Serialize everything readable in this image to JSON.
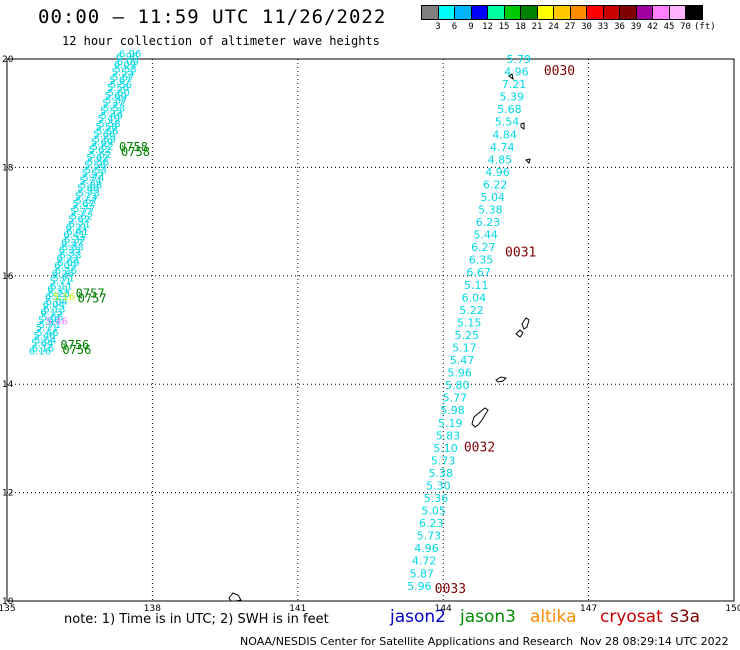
{
  "header": {
    "title": "00:00 — 11:59 UTC 11/26/2022",
    "subtitle": "12 hour collection of altimeter wave heights"
  },
  "colorbar": {
    "colors": [
      "#808080",
      "#00ffff",
      "#00b4ff",
      "#0000ff",
      "#00ffa0",
      "#00c800",
      "#008000",
      "#ffff00",
      "#ffc800",
      "#ff8c00",
      "#ff0000",
      "#c80000",
      "#800000",
      "#a000a0",
      "#ff80ff",
      "#ffb4ff",
      "#000000"
    ],
    "labels": [
      "3",
      "6",
      "9",
      "12",
      "15",
      "18",
      "21",
      "24",
      "27",
      "30",
      "33",
      "36",
      "39",
      "42",
      "45",
      "70",
      "(ft)"
    ]
  },
  "map": {
    "lon_ticks": [
      "135",
      "138",
      "141",
      "144",
      "147",
      "150"
    ],
    "lat_ticks": [
      "10",
      "12",
      "14",
      "16",
      "18",
      "20"
    ],
    "lon_range": [
      135,
      150
    ],
    "lat_range": [
      10,
      20
    ],
    "grid": true
  },
  "tracks": {
    "west": {
      "color": "#00d8e8",
      "values": [
        "6.16",
        "5.64",
        "5.46",
        "5.71",
        "5.66",
        "6.13",
        "6.04",
        "6.23",
        "6.11",
        "5.71",
        "6.26",
        "6.09",
        "6.23",
        "6.33",
        "6.37",
        "6.41",
        "6.21",
        "5.62",
        "5.77",
        "5.67",
        "5.73",
        "5.88",
        "5.74",
        "5.53",
        "5.56",
        "5.62",
        "5.62",
        "5.69",
        "5.66",
        "5.58",
        "5.49",
        "5.53",
        "5.37",
        "5.60",
        "5.56",
        "5.67",
        "5.53",
        "6.09",
        "6.96"
      ],
      "highlight": [
        {
          "value": "5.16",
          "color": "#c8ff00"
        },
        {
          "value": "5.46",
          "color": "#ff80ff"
        }
      ],
      "times": [
        {
          "label": "0756",
          "lat": 14.65,
          "color": "#008000"
        },
        {
          "label": "0757",
          "lat": 15.6,
          "color": "#008000"
        },
        {
          "label": "0758",
          "lat": 18.3,
          "color": "#008000"
        }
      ]
    },
    "east": {
      "color": "#00d8e8",
      "values": [
        "5.79",
        "4.96",
        "7.21",
        "5.39",
        "5.68",
        "5.54",
        "4.84",
        "4.74",
        "4.85",
        "4.96",
        "6.22",
        "5.04",
        "5.38",
        "6.23",
        "5.44",
        "6.27",
        "6.35",
        "6.67",
        "5.11",
        "6.04",
        "5.22",
        "5.15",
        "5.25",
        "5.17",
        "5.47",
        "5.96",
        "5.80",
        "5.77",
        "5.98",
        "5.19",
        "5.83",
        "5.10",
        "5.73",
        "5.38",
        "5.30",
        "5.36",
        "5.05",
        "6.23",
        "5.73",
        "4.96",
        "4.72",
        "5.87",
        "5.96"
      ],
      "times": [
        {
          "label": "0030",
          "lat": 19.78,
          "color": "#800000"
        },
        {
          "label": "0031",
          "lat": 16.43,
          "color": "#800000"
        },
        {
          "label": "0032",
          "lat": 12.83,
          "color": "#800000"
        },
        {
          "label": "0033",
          "lat": 10.22,
          "color": "#800000"
        }
      ]
    }
  },
  "note": "note: 1) Time is in UTC; 2) SWH is in feet",
  "legend": [
    {
      "label": "jason2",
      "color": "#0000c8"
    },
    {
      "label": "jason3",
      "color": "#008c00"
    },
    {
      "label": "altika",
      "color": "#ff8c00"
    },
    {
      "label": "cryosat",
      "color": "#c80000"
    },
    {
      "label": "s3a",
      "color": "#800000"
    }
  ],
  "footer": {
    "credit": "NOAA/NESDIS Center for Satellite Applications and Research",
    "timestamp": "Nov 28 08:29:14 UTC 2022"
  }
}
